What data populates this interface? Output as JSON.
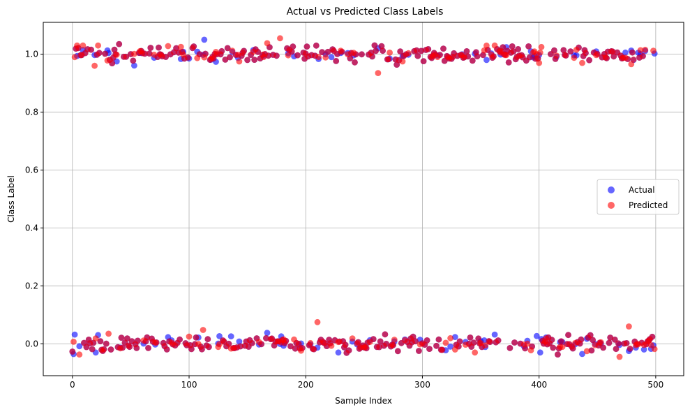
{
  "chart_data": {
    "type": "scatter",
    "title": "Actual vs Predicted Class Labels",
    "xlabel": "Sample Index",
    "ylabel": "Class Label",
    "xlim": [
      -25,
      524
    ],
    "ylim": [
      -0.11,
      1.11
    ],
    "xticks": [
      0,
      100,
      200,
      300,
      400,
      500
    ],
    "yticks": [
      0.0,
      0.2,
      0.4,
      0.6,
      0.8,
      1.0
    ],
    "ytick_labels": [
      "0.0",
      "0.2",
      "0.4",
      "0.6",
      "0.8",
      "1.0"
    ],
    "grid": true,
    "legend_position": "center-right",
    "n_samples": 500,
    "classes": [
      0,
      1
    ],
    "jitter": 0.025,
    "series": [
      {
        "name": "Actual",
        "color": "#0000ff",
        "alpha": 0.6
      },
      {
        "name": "Predicted",
        "color": "#ff0000",
        "alpha": 0.6
      }
    ],
    "highlighted_points": {
      "actual": [
        {
          "x": 2,
          "y": 0.032
        },
        {
          "x": 20,
          "y": -0.03
        },
        {
          "x": 37,
          "y": 1.0
        },
        {
          "x": 38,
          "y": 0.975
        },
        {
          "x": 85,
          "y": 0.012
        },
        {
          "x": 100,
          "y": 0.985
        },
        {
          "x": 113,
          "y": 1.05
        },
        {
          "x": 167,
          "y": 0.038
        },
        {
          "x": 222,
          "y": 0.99
        },
        {
          "x": 228,
          "y": -0.03
        },
        {
          "x": 353,
          "y": 0.012
        },
        {
          "x": 355,
          "y": 0.98
        },
        {
          "x": 362,
          "y": 0.032
        },
        {
          "x": 393,
          "y": 1.01
        },
        {
          "x": 398,
          "y": 0.027
        },
        {
          "x": 401,
          "y": -0.03
        },
        {
          "x": 437,
          "y": -0.035
        },
        {
          "x": 481,
          "y": 0.98
        },
        {
          "x": 485,
          "y": 1.005
        },
        {
          "x": 498,
          "y": -0.005
        }
      ],
      "predicted": [
        {
          "x": 4,
          "y": 1.03
        },
        {
          "x": 9,
          "y": 1.03
        },
        {
          "x": 19,
          "y": 0.96
        },
        {
          "x": 22,
          "y": 1.03
        },
        {
          "x": 31,
          "y": 0.035
        },
        {
          "x": 82,
          "y": 1.028
        },
        {
          "x": 112,
          "y": 0.048
        },
        {
          "x": 143,
          "y": 0.975
        },
        {
          "x": 167,
          "y": 1.038
        },
        {
          "x": 178,
          "y": 1.055
        },
        {
          "x": 190,
          "y": 0.015
        },
        {
          "x": 210,
          "y": 0.075
        },
        {
          "x": 262,
          "y": 0.935
        },
        {
          "x": 283,
          "y": 0.975
        },
        {
          "x": 345,
          "y": -0.03
        },
        {
          "x": 362,
          "y": 1.03
        },
        {
          "x": 400,
          "y": 0.97
        },
        {
          "x": 402,
          "y": 1.025
        },
        {
          "x": 437,
          "y": 0.97
        },
        {
          "x": 469,
          "y": -0.045
        },
        {
          "x": 477,
          "y": 0.06
        },
        {
          "x": 499,
          "y": -0.018
        }
      ]
    }
  }
}
